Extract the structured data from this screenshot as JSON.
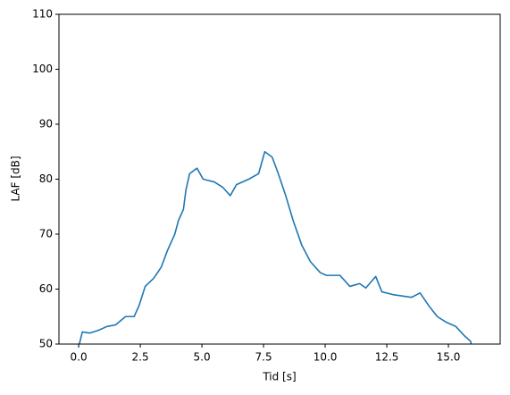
{
  "chart_data": {
    "type": "line",
    "xlabel": "Tid [s]",
    "ylabel": "LAF [dB]",
    "x": [
      0,
      0.15,
      0.45,
      0.8,
      1.15,
      1.5,
      1.9,
      2.25,
      2.45,
      2.7,
      3.05,
      3.35,
      3.6,
      3.9,
      4.05,
      4.25,
      4.35,
      4.5,
      4.8,
      5.05,
      5.5,
      5.85,
      6.15,
      6.4,
      6.9,
      7.3,
      7.55,
      7.85,
      8.1,
      8.4,
      8.7,
      9.05,
      9.4,
      9.8,
      10.05,
      10.6,
      11.0,
      11.4,
      11.65,
      12.05,
      12.3,
      12.75,
      13.5,
      13.85,
      14.2,
      14.55,
      14.9,
      15.3,
      15.65,
      15.9,
      15.95
    ],
    "series": [
      {
        "color": "#1f77b4",
        "values": [
          49.5,
          52.2,
          52,
          52.5,
          53.2,
          53.5,
          55,
          55,
          57,
          60.5,
          62,
          64,
          67,
          70,
          72.5,
          74.5,
          78,
          81,
          82,
          80,
          79.5,
          78.5,
          77,
          79,
          80,
          81,
          85,
          84,
          81,
          77,
          72.5,
          68,
          65,
          63,
          62.5,
          62.5,
          60.5,
          61,
          60.2,
          62.3,
          59.5,
          59,
          58.5,
          59.3,
          57,
          55,
          54,
          53.2,
          51.5,
          50.5,
          49.5
        ]
      }
    ],
    "xlim": [
      -0.8,
      17.1
    ],
    "ylim": [
      50,
      110
    ],
    "xticks": [
      {
        "value": 0,
        "label": "0.0"
      },
      2.5,
      {
        "value": 5,
        "label": "5.0"
      },
      7.5,
      {
        "value": 10,
        "label": "10.0"
      },
      12.5,
      {
        "value": 15,
        "label": "15.0"
      }
    ],
    "yticks": [
      50,
      60,
      70,
      80,
      90,
      100,
      110
    ]
  }
}
